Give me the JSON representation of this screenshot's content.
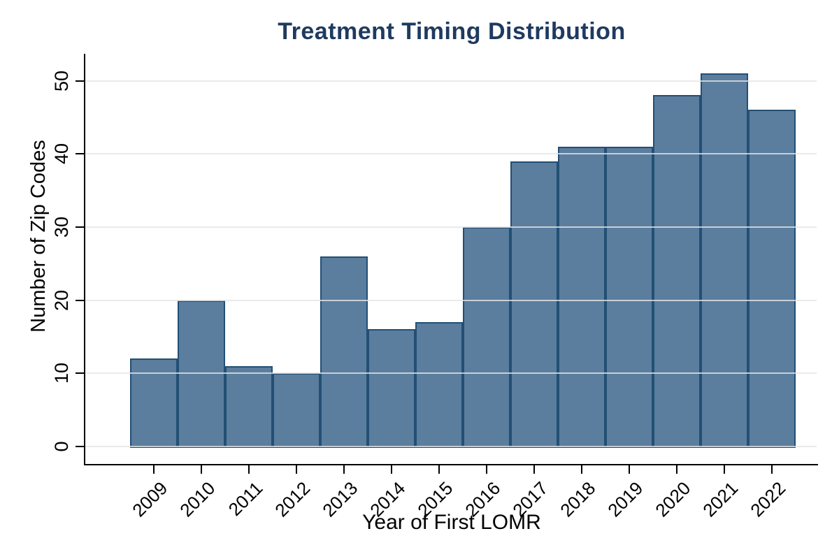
{
  "chart_data": {
    "type": "bar",
    "title": "Treatment Timing Distribution",
    "xlabel": "Year of First LOMR",
    "ylabel": "Number of Zip Codes",
    "categories": [
      "2009",
      "2010",
      "2011",
      "2012",
      "2013",
      "2014",
      "2015",
      "2016",
      "2017",
      "2018",
      "2019",
      "2020",
      "2021",
      "2022"
    ],
    "values": [
      12,
      20,
      11,
      10,
      26,
      16,
      17,
      30,
      39,
      41,
      41,
      48,
      51,
      46
    ],
    "yticks": [
      0,
      10,
      20,
      30,
      40,
      50
    ],
    "ylim": [
      0,
      53.5
    ],
    "xtick_angle_deg": 45,
    "ytick_rotation_deg": 90,
    "grid": "horizontal",
    "legend": "none",
    "bars_contiguous": true
  },
  "colors": {
    "background": "#ffffff",
    "bar_fill": "#5b7e9e",
    "bar_border": "#234f74",
    "gridline": "#e8e8e8",
    "axis_line": "#000000",
    "tick_label": "#000000",
    "title": "#1f3a5f"
  }
}
